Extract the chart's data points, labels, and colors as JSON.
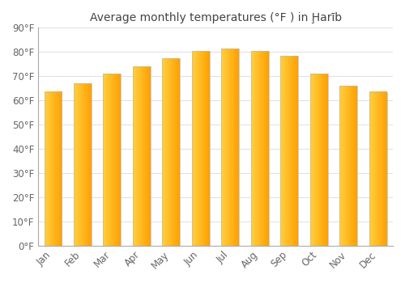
{
  "title": "Average monthly temperatures (°F ) in Ḩarīb",
  "months": [
    "Jan",
    "Feb",
    "Mar",
    "Apr",
    "May",
    "Jun",
    "Jul",
    "Aug",
    "Sep",
    "Oct",
    "Nov",
    "Dec"
  ],
  "values": [
    63.5,
    67.0,
    71.0,
    74.0,
    77.5,
    80.5,
    81.5,
    80.5,
    78.5,
    71.0,
    66.0,
    63.5
  ],
  "bar_color_light": "#FFD040",
  "bar_color_dark": "#FFA000",
  "bar_edge_color": "#BBBBBB",
  "background_color": "#FFFFFF",
  "grid_color": "#E0E0E0",
  "ylim": [
    0,
    90
  ],
  "yticks": [
    0,
    10,
    20,
    30,
    40,
    50,
    60,
    70,
    80,
    90
  ],
  "ytick_labels": [
    "0°F",
    "10°F",
    "20°F",
    "30°F",
    "40°F",
    "50°F",
    "60°F",
    "70°F",
    "80°F",
    "90°F"
  ],
  "title_fontsize": 10,
  "tick_fontsize": 8.5,
  "figsize": [
    5.0,
    3.5
  ],
  "dpi": 100,
  "bar_width": 0.6
}
